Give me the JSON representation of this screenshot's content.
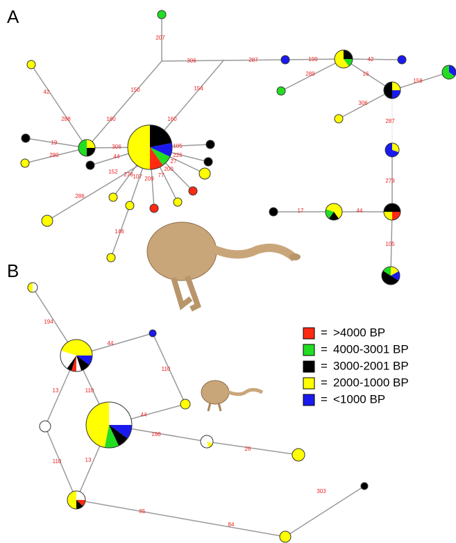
{
  "panels": [
    {
      "label": "A",
      "edge_labels": [
        "207",
        "306",
        "287",
        "150",
        "154",
        "160",
        "160",
        "42",
        "288",
        "19",
        "280",
        "306",
        "44",
        "152",
        "278",
        "107",
        "209",
        "77",
        "200",
        "27",
        "226",
        "105",
        "286",
        "146",
        "199",
        "42",
        "289",
        "16",
        "306",
        "158",
        "287",
        "279",
        "17",
        "44",
        "105"
      ]
    },
    {
      "label": "B",
      "edge_labels": [
        "194",
        "44",
        "110",
        "13",
        "110",
        "44",
        "198",
        "26",
        "110",
        "13",
        "85",
        "84",
        "303"
      ]
    }
  ],
  "legend": {
    "separator": "=",
    "items": [
      {
        "label": ">4000 BP",
        "color": "#ff2a12"
      },
      {
        "label": "4000-3001 BP",
        "color": "#22dd22"
      },
      {
        "label": "3000-2001 BP",
        "color": "#000000"
      },
      {
        "label": "2000-1000 BP",
        "color": "#ffff00"
      },
      {
        "label": "<1000 BP",
        "color": "#1a1aee"
      }
    ]
  }
}
